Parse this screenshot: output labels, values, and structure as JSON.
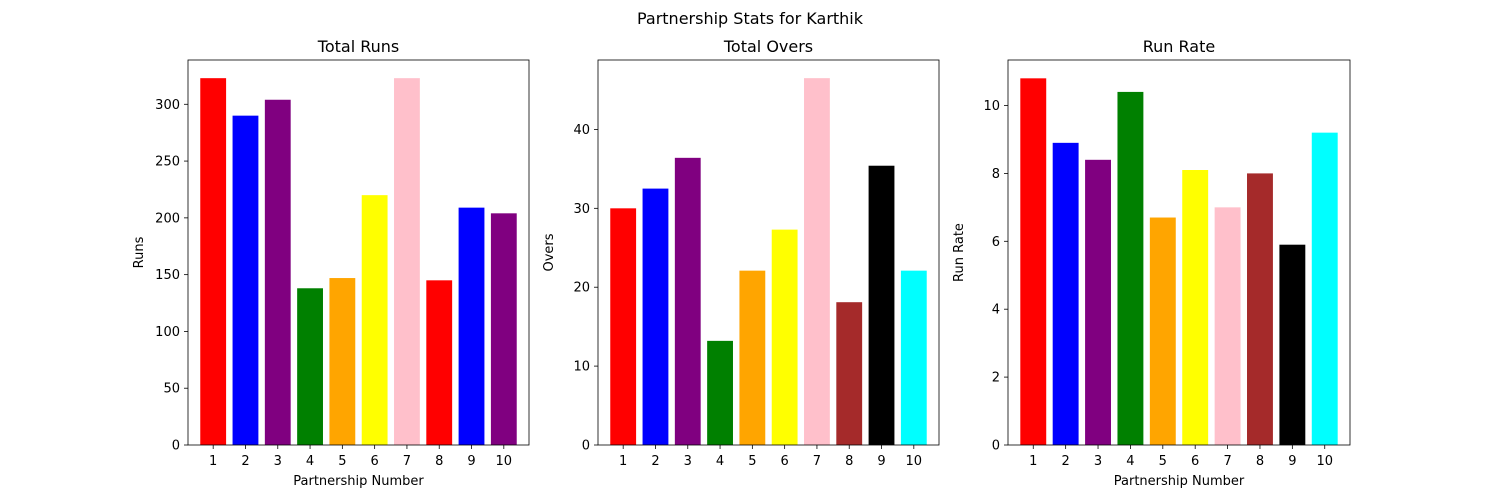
{
  "figure": {
    "suptitle": "Partnership Stats for Karthik"
  },
  "chart_data": [
    {
      "type": "bar",
      "title": "Total Runs",
      "xlabel": "Partnership Number",
      "ylabel": "Runs",
      "categories": [
        "1",
        "2",
        "3",
        "4",
        "5",
        "6",
        "7",
        "8",
        "9",
        "10"
      ],
      "values": [
        323,
        290,
        304,
        138,
        147,
        220,
        323,
        145,
        209,
        204
      ],
      "colors": [
        "#ff0000",
        "#0000ff",
        "#800080",
        "#008000",
        "#ffa500",
        "#ffff00",
        "#ffc0cb",
        "#ff0000",
        "#0000ff",
        "#800080"
      ],
      "ylim": [
        0,
        339
      ],
      "yticks": [
        0,
        50,
        100,
        150,
        200,
        250,
        300
      ],
      "grid": false,
      "legend": "none"
    },
    {
      "type": "bar",
      "title": "Total Overs",
      "xlabel": "",
      "ylabel": "Overs",
      "categories": [
        "1",
        "2",
        "3",
        "4",
        "5",
        "6",
        "7",
        "8",
        "9",
        "10"
      ],
      "values": [
        30,
        32.5,
        36.4,
        13.2,
        22.1,
        27.3,
        46.5,
        18.1,
        35.4,
        22.1
      ],
      "colors": [
        "#ff0000",
        "#0000ff",
        "#800080",
        "#008000",
        "#ffa500",
        "#ffff00",
        "#ffc0cb",
        "#a52a2a",
        "#000000",
        "#00ffff"
      ],
      "ylim": [
        0,
        48.8
      ],
      "yticks": [
        0,
        10,
        20,
        30,
        40
      ],
      "grid": false,
      "legend": "none"
    },
    {
      "type": "bar",
      "title": "Run Rate",
      "xlabel": "Partnership Number",
      "ylabel": "Run Rate",
      "categories": [
        "1",
        "2",
        "3",
        "4",
        "5",
        "6",
        "7",
        "8",
        "9",
        "10"
      ],
      "values": [
        10.8,
        8.9,
        8.4,
        10.4,
        6.7,
        8.1,
        7.0,
        8.0,
        5.9,
        9.2
      ],
      "colors": [
        "#ff0000",
        "#0000ff",
        "#800080",
        "#008000",
        "#ffa500",
        "#ffff00",
        "#ffc0cb",
        "#a52a2a",
        "#000000",
        "#00ffff"
      ],
      "ylim": [
        0,
        11.34
      ],
      "yticks": [
        0,
        2,
        4,
        6,
        8,
        10
      ],
      "grid": false,
      "legend": "none"
    }
  ]
}
